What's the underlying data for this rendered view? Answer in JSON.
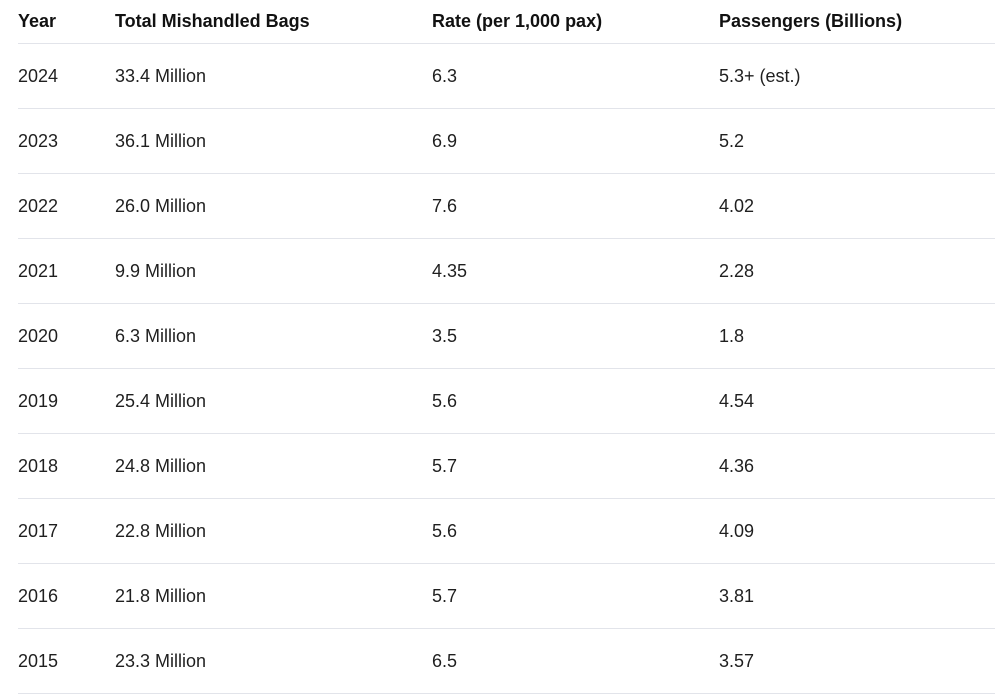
{
  "colors": {
    "divider": "#e2e4ea",
    "header_text": "#111111",
    "cell_text": "#1f1f1f",
    "background": "#ffffff"
  },
  "chart_data": {
    "type": "table",
    "columns": [
      "Year",
      "Total Mishandled Bags",
      "Rate (per 1,000 pax)",
      "Passengers (Billions)"
    ],
    "rows": [
      [
        "2024",
        "33.4 Million",
        "6.3",
        "5.3+ (est.)"
      ],
      [
        "2023",
        "36.1 Million",
        "6.9",
        "5.2"
      ],
      [
        "2022",
        "26.0 Million",
        "7.6",
        "4.02"
      ],
      [
        "2021",
        "9.9 Million",
        "4.35",
        "2.28"
      ],
      [
        "2020",
        "6.3 Million",
        "3.5",
        "1.8"
      ],
      [
        "2019",
        "25.4 Million",
        "5.6",
        "4.54"
      ],
      [
        "2018",
        "24.8 Million",
        "5.7",
        "4.36"
      ],
      [
        "2017",
        "22.8 Million",
        "5.6",
        "4.09"
      ],
      [
        "2016",
        "21.8 Million",
        "5.7",
        "3.81"
      ],
      [
        "2015",
        "23.3 Million",
        "6.5",
        "3.57"
      ]
    ]
  }
}
